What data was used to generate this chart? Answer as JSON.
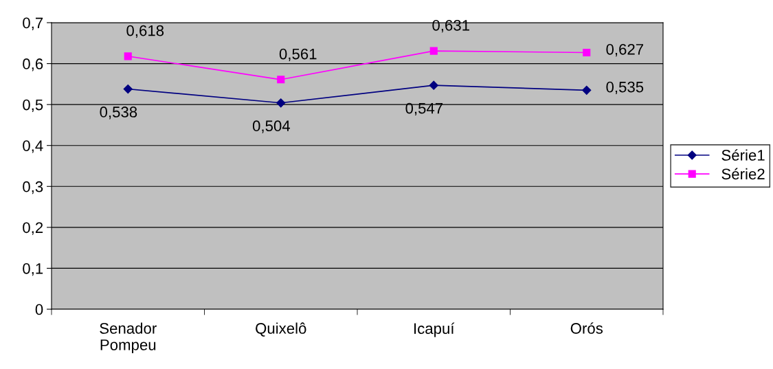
{
  "chart_data": {
    "type": "line",
    "categories": [
      "Senador\nPompeu",
      "Quixelô",
      "Icapuí",
      "Orós"
    ],
    "series": [
      {
        "name": "Série1",
        "color": "#000080",
        "marker": "diamond",
        "values": [
          0.538,
          0.504,
          0.547,
          0.535
        ],
        "value_labels": [
          "0,538",
          "0,504",
          "0,547",
          "0,535"
        ]
      },
      {
        "name": "Série2",
        "color": "#ff00ff",
        "marker": "square",
        "values": [
          0.618,
          0.561,
          0.631,
          0.627
        ],
        "value_labels": [
          "0,618",
          "0,561",
          "0,631",
          "0,627"
        ]
      }
    ],
    "ylim": [
      0,
      0.7
    ],
    "yticks": [
      {
        "value": 0,
        "label": "0"
      },
      {
        "value": 0.1,
        "label": "0,1"
      },
      {
        "value": 0.2,
        "label": "0,2"
      },
      {
        "value": 0.3,
        "label": "0,3"
      },
      {
        "value": 0.4,
        "label": "0,4"
      },
      {
        "value": 0.5,
        "label": "0,5"
      },
      {
        "value": 0.6,
        "label": "0,6"
      },
      {
        "value": 0.7,
        "label": "0,7"
      }
    ],
    "grid": "y",
    "legend": "right",
    "line_style": "solid"
  }
}
